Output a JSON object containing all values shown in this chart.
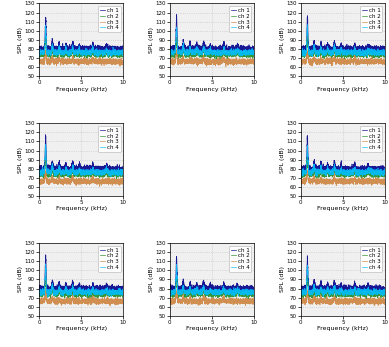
{
  "title": "",
  "nrows": 3,
  "ncols": 3,
  "subplot_layout": [
    true,
    true,
    true,
    true,
    false,
    true,
    true,
    true,
    true
  ],
  "xlim": [
    0,
    10
  ],
  "ylim": [
    50,
    130
  ],
  "xticks": [
    0,
    5,
    10
  ],
  "yticks": [
    50,
    60,
    70,
    80,
    90,
    100,
    110,
    120,
    130
  ],
  "xlabel": "Frequency (kHz)",
  "ylabel": "SPL (dB)",
  "channels": [
    "ch 1",
    "ch 2",
    "ch 3",
    "ch 4"
  ],
  "ch_colors": [
    "#00008B",
    "#228B22",
    "#CD853F",
    "#00BFFF"
  ],
  "legend_fontsize": 4,
  "axis_fontsize": 4.5,
  "tick_fontsize": 4,
  "grid_color": "#c0c0c0",
  "grid_style": ":",
  "bg_color": "#f0f0f0"
}
